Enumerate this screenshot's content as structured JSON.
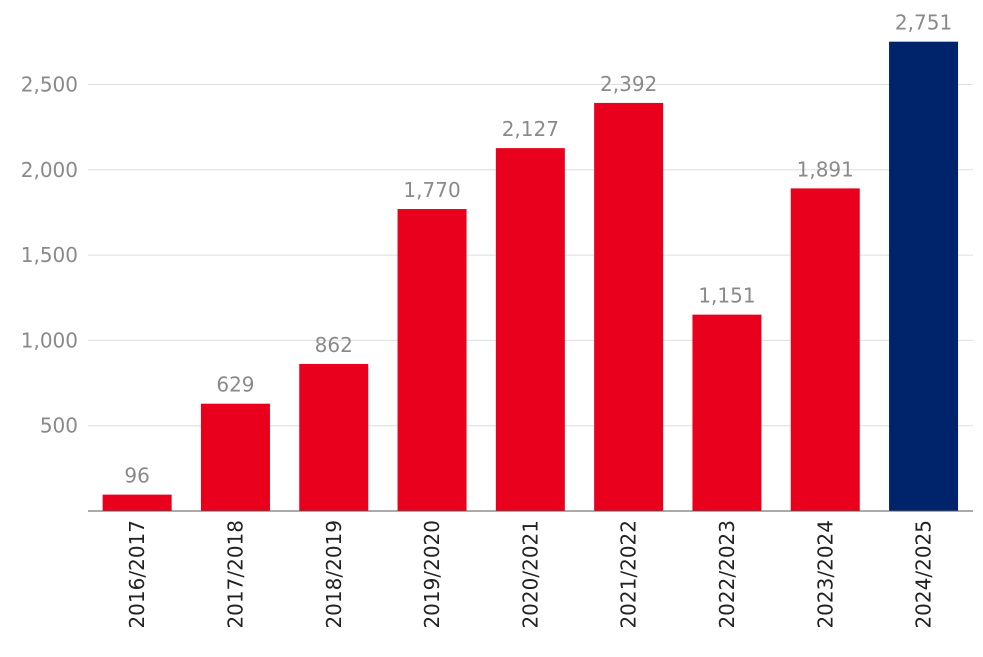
{
  "chart_data": {
    "type": "bar",
    "title": "",
    "xlabel": "",
    "ylabel": "",
    "categories": [
      "2016/2017",
      "2017/2018",
      "2018/2019",
      "2019/2020",
      "2020/2021",
      "2021/2022",
      "2022/2023",
      "2023/2024",
      "2024/2025"
    ],
    "values": [
      96,
      629,
      862,
      1770,
      2127,
      2392,
      1151,
      1891,
      2751
    ],
    "value_labels": [
      "96",
      "629",
      "862",
      "1,770",
      "2,127",
      "2,392",
      "1,151",
      "1,891",
      "2,751"
    ],
    "ylim": [
      0,
      2750
    ],
    "yticks": [
      500,
      1000,
      1500,
      2000,
      2500
    ],
    "ytick_labels": [
      "500",
      "1,000",
      "1,500",
      "2,000",
      "2,500"
    ],
    "grid": true,
    "legend": "none",
    "colors": {
      "bar": "#e8001c",
      "highlight_bar": "#00246b",
      "highlight_index": 8
    }
  }
}
